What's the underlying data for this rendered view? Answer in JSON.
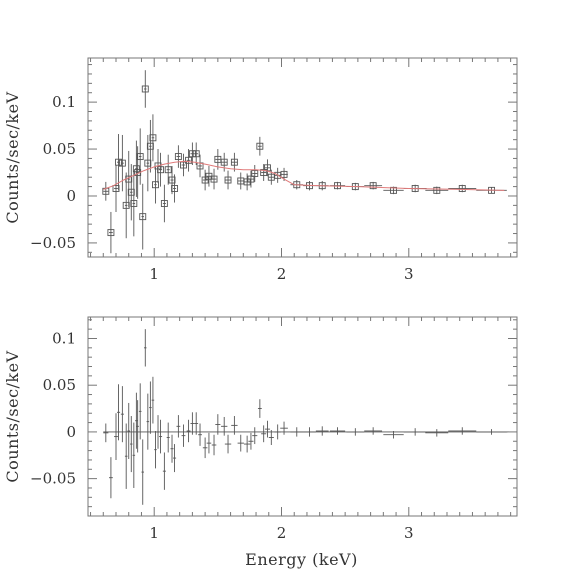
{
  "chart_data": [
    {
      "type": "scatter",
      "ylabel": "Counts/sec/keV",
      "xlabel": "",
      "xlim": [
        0.48,
        3.85
      ],
      "ylim": [
        -0.065,
        0.147
      ],
      "xticks": [
        {
          "v": 1,
          "label": "1"
        },
        {
          "v": 2,
          "label": "2"
        },
        {
          "v": 3,
          "label": "3"
        }
      ],
      "yticks": [
        {
          "v": -0.05,
          "label": "−0.05"
        },
        {
          "v": 0,
          "label": "0"
        },
        {
          "v": 0.05,
          "label": "0.05"
        },
        {
          "v": 0.1,
          "label": "0.1"
        }
      ],
      "grid": false,
      "colors": {
        "data": "#555555",
        "model": "#e07a7a"
      },
      "series": [
        {
          "kind": "data",
          "points": [
            {
              "x": 0.62,
              "y": 0.005,
              "xerr": 0.02,
              "yerr": 0.01
            },
            {
              "x": 0.66,
              "y": -0.039,
              "xerr": 0.015,
              "yerr": 0.022
            },
            {
              "x": 0.7,
              "y": 0.008,
              "xerr": 0.015,
              "yerr": 0.025
            },
            {
              "x": 0.72,
              "y": 0.036,
              "xerr": 0.012,
              "yerr": 0.03
            },
            {
              "x": 0.75,
              "y": 0.035,
              "xerr": 0.012,
              "yerr": 0.03
            },
            {
              "x": 0.78,
              "y": -0.01,
              "xerr": 0.01,
              "yerr": 0.035
            },
            {
              "x": 0.8,
              "y": 0.018,
              "xerr": 0.01,
              "yerr": 0.03
            },
            {
              "x": 0.82,
              "y": 0.004,
              "xerr": 0.01,
              "yerr": 0.03
            },
            {
              "x": 0.84,
              "y": -0.008,
              "xerr": 0.01,
              "yerr": 0.035
            },
            {
              "x": 0.86,
              "y": 0.029,
              "xerr": 0.01,
              "yerr": 0.03
            },
            {
              "x": 0.87,
              "y": 0.025,
              "xerr": 0.01,
              "yerr": 0.028
            },
            {
              "x": 0.89,
              "y": 0.042,
              "xerr": 0.01,
              "yerr": 0.03
            },
            {
              "x": 0.91,
              "y": -0.022,
              "xerr": 0.01,
              "yerr": 0.035
            },
            {
              "x": 0.93,
              "y": 0.114,
              "xerr": 0.01,
              "yerr": 0.02
            },
            {
              "x": 0.95,
              "y": 0.035,
              "xerr": 0.01,
              "yerr": 0.03
            },
            {
              "x": 0.97,
              "y": 0.053,
              "xerr": 0.01,
              "yerr": 0.028
            },
            {
              "x": 0.99,
              "y": 0.062,
              "xerr": 0.01,
              "yerr": 0.025
            },
            {
              "x": 1.01,
              "y": 0.012,
              "xerr": 0.01,
              "yerr": 0.02
            },
            {
              "x": 1.03,
              "y": 0.032,
              "xerr": 0.012,
              "yerr": 0.018
            },
            {
              "x": 1.05,
              "y": 0.028,
              "xerr": 0.012,
              "yerr": 0.018
            },
            {
              "x": 1.08,
              "y": -0.008,
              "xerr": 0.012,
              "yerr": 0.02
            },
            {
              "x": 1.11,
              "y": 0.028,
              "xerr": 0.012,
              "yerr": 0.016
            },
            {
              "x": 1.14,
              "y": 0.017,
              "xerr": 0.012,
              "yerr": 0.015
            },
            {
              "x": 1.16,
              "y": 0.008,
              "xerr": 0.012,
              "yerr": 0.015
            },
            {
              "x": 1.19,
              "y": 0.042,
              "xerr": 0.015,
              "yerr": 0.012
            },
            {
              "x": 1.23,
              "y": 0.033,
              "xerr": 0.015,
              "yerr": 0.012
            },
            {
              "x": 1.27,
              "y": 0.038,
              "xerr": 0.015,
              "yerr": 0.012
            },
            {
              "x": 1.3,
              "y": 0.045,
              "xerr": 0.015,
              "yerr": 0.012
            },
            {
              "x": 1.33,
              "y": 0.045,
              "xerr": 0.015,
              "yerr": 0.012
            },
            {
              "x": 1.36,
              "y": 0.032,
              "xerr": 0.015,
              "yerr": 0.012
            },
            {
              "x": 1.4,
              "y": 0.017,
              "xerr": 0.018,
              "yerr": 0.011
            },
            {
              "x": 1.43,
              "y": 0.021,
              "xerr": 0.018,
              "yerr": 0.011
            },
            {
              "x": 1.47,
              "y": 0.018,
              "xerr": 0.018,
              "yerr": 0.011
            },
            {
              "x": 1.5,
              "y": 0.039,
              "xerr": 0.02,
              "yerr": 0.011
            },
            {
              "x": 1.55,
              "y": 0.036,
              "xerr": 0.025,
              "yerr": 0.01
            },
            {
              "x": 1.58,
              "y": 0.017,
              "xerr": 0.025,
              "yerr": 0.01
            },
            {
              "x": 1.63,
              "y": 0.036,
              "xerr": 0.025,
              "yerr": 0.01
            },
            {
              "x": 1.68,
              "y": 0.016,
              "xerr": 0.025,
              "yerr": 0.009
            },
            {
              "x": 1.73,
              "y": 0.015,
              "xerr": 0.025,
              "yerr": 0.009
            },
            {
              "x": 1.76,
              "y": 0.018,
              "xerr": 0.02,
              "yerr": 0.009
            },
            {
              "x": 1.79,
              "y": 0.024,
              "xerr": 0.02,
              "yerr": 0.009
            },
            {
              "x": 1.83,
              "y": 0.053,
              "xerr": 0.015,
              "yerr": 0.01
            },
            {
              "x": 1.86,
              "y": 0.025,
              "xerr": 0.02,
              "yerr": 0.009
            },
            {
              "x": 1.89,
              "y": 0.03,
              "xerr": 0.02,
              "yerr": 0.009
            },
            {
              "x": 1.92,
              "y": 0.02,
              "xerr": 0.02,
              "yerr": 0.008
            },
            {
              "x": 1.97,
              "y": 0.022,
              "xerr": 0.025,
              "yerr": 0.008
            },
            {
              "x": 2.02,
              "y": 0.023,
              "xerr": 0.03,
              "yerr": 0.007
            },
            {
              "x": 2.12,
              "y": 0.012,
              "xerr": 0.05,
              "yerr": 0.005
            },
            {
              "x": 2.22,
              "y": 0.011,
              "xerr": 0.05,
              "yerr": 0.005
            },
            {
              "x": 2.32,
              "y": 0.011,
              "xerr": 0.05,
              "yerr": 0.005
            },
            {
              "x": 2.44,
              "y": 0.011,
              "xerr": 0.06,
              "yerr": 0.004
            },
            {
              "x": 2.58,
              "y": 0.01,
              "xerr": 0.07,
              "yerr": 0.004
            },
            {
              "x": 2.72,
              "y": 0.011,
              "xerr": 0.07,
              "yerr": 0.004
            },
            {
              "x": 2.88,
              "y": 0.006,
              "xerr": 0.08,
              "yerr": 0.004
            },
            {
              "x": 3.05,
              "y": 0.008,
              "xerr": 0.09,
              "yerr": 0.004
            },
            {
              "x": 3.22,
              "y": 0.006,
              "xerr": 0.09,
              "yerr": 0.004
            },
            {
              "x": 3.42,
              "y": 0.008,
              "xerr": 0.11,
              "yerr": 0.004
            },
            {
              "x": 3.65,
              "y": 0.006,
              "xerr": 0.12,
              "yerr": 0.003
            }
          ]
        },
        {
          "kind": "model",
          "points": [
            {
              "x": 0.6,
              "y": 0.007
            },
            {
              "x": 0.68,
              "y": 0.011
            },
            {
              "x": 0.76,
              "y": 0.017
            },
            {
              "x": 0.84,
              "y": 0.022
            },
            {
              "x": 0.92,
              "y": 0.027
            },
            {
              "x": 1.0,
              "y": 0.031
            },
            {
              "x": 1.08,
              "y": 0.034
            },
            {
              "x": 1.16,
              "y": 0.036
            },
            {
              "x": 1.24,
              "y": 0.037
            },
            {
              "x": 1.32,
              "y": 0.036
            },
            {
              "x": 1.4,
              "y": 0.034
            },
            {
              "x": 1.5,
              "y": 0.031
            },
            {
              "x": 1.6,
              "y": 0.029
            },
            {
              "x": 1.7,
              "y": 0.028
            },
            {
              "x": 1.8,
              "y": 0.028
            },
            {
              "x": 1.88,
              "y": 0.027
            },
            {
              "x": 1.95,
              "y": 0.024
            },
            {
              "x": 2.02,
              "y": 0.018
            },
            {
              "x": 2.1,
              "y": 0.012
            },
            {
              "x": 2.3,
              "y": 0.011
            },
            {
              "x": 2.6,
              "y": 0.01
            },
            {
              "x": 3.0,
              "y": 0.008
            },
            {
              "x": 3.4,
              "y": 0.007
            },
            {
              "x": 3.75,
              "y": 0.006
            }
          ]
        }
      ]
    },
    {
      "type": "scatter",
      "ylabel": "Counts/sec/keV",
      "xlabel": "Energy (keV)",
      "xlim": [
        0.48,
        3.85
      ],
      "ylim": [
        -0.09,
        0.123
      ],
      "xticks": [
        {
          "v": 1,
          "label": "1"
        },
        {
          "v": 2,
          "label": "2"
        },
        {
          "v": 3,
          "label": "3"
        }
      ],
      "yticks": [
        {
          "v": -0.05,
          "label": "−0.05"
        },
        {
          "v": 0,
          "label": "0"
        },
        {
          "v": 0.05,
          "label": "0.05"
        },
        {
          "v": 0.1,
          "label": "0.1"
        }
      ],
      "grid": false,
      "colors": {
        "data": "#555555"
      },
      "zero_line": 0,
      "series": [
        {
          "kind": "residual",
          "points": [
            {
              "x": 0.62,
              "y": -0.001,
              "xerr": 0.02,
              "yerr": 0.01
            },
            {
              "x": 0.66,
              "y": -0.049,
              "xerr": 0.015,
              "yerr": 0.022
            },
            {
              "x": 0.7,
              "y": -0.005,
              "xerr": 0.015,
              "yerr": 0.025
            },
            {
              "x": 0.72,
              "y": 0.021,
              "xerr": 0.012,
              "yerr": 0.03
            },
            {
              "x": 0.75,
              "y": 0.019,
              "xerr": 0.012,
              "yerr": 0.03
            },
            {
              "x": 0.78,
              "y": -0.026,
              "xerr": 0.01,
              "yerr": 0.035
            },
            {
              "x": 0.8,
              "y": 0.001,
              "xerr": 0.01,
              "yerr": 0.03
            },
            {
              "x": 0.82,
              "y": -0.013,
              "xerr": 0.01,
              "yerr": 0.03
            },
            {
              "x": 0.84,
              "y": -0.025,
              "xerr": 0.01,
              "yerr": 0.035
            },
            {
              "x": 0.86,
              "y": 0.012,
              "xerr": 0.01,
              "yerr": 0.03
            },
            {
              "x": 0.87,
              "y": 0.006,
              "xerr": 0.01,
              "yerr": 0.028
            },
            {
              "x": 0.89,
              "y": 0.022,
              "xerr": 0.01,
              "yerr": 0.03
            },
            {
              "x": 0.91,
              "y": -0.043,
              "xerr": 0.01,
              "yerr": 0.035
            },
            {
              "x": 0.93,
              "y": 0.09,
              "xerr": 0.01,
              "yerr": 0.02
            },
            {
              "x": 0.95,
              "y": 0.011,
              "xerr": 0.01,
              "yerr": 0.03
            },
            {
              "x": 0.97,
              "y": 0.026,
              "xerr": 0.01,
              "yerr": 0.028
            },
            {
              "x": 0.99,
              "y": 0.034,
              "xerr": 0.01,
              "yerr": 0.025
            },
            {
              "x": 1.01,
              "y": -0.019,
              "xerr": 0.01,
              "yerr": 0.02
            },
            {
              "x": 1.03,
              "y": 0.0,
              "xerr": 0.012,
              "yerr": 0.018
            },
            {
              "x": 1.05,
              "y": -0.005,
              "xerr": 0.012,
              "yerr": 0.018
            },
            {
              "x": 1.08,
              "y": -0.042,
              "xerr": 0.012,
              "yerr": 0.02
            },
            {
              "x": 1.11,
              "y": -0.006,
              "xerr": 0.012,
              "yerr": 0.016
            },
            {
              "x": 1.14,
              "y": -0.018,
              "xerr": 0.012,
              "yerr": 0.015
            },
            {
              "x": 1.16,
              "y": -0.028,
              "xerr": 0.012,
              "yerr": 0.015
            },
            {
              "x": 1.19,
              "y": 0.006,
              "xerr": 0.015,
              "yerr": 0.012
            },
            {
              "x": 1.23,
              "y": -0.004,
              "xerr": 0.015,
              "yerr": 0.012
            },
            {
              "x": 1.27,
              "y": 0.001,
              "xerr": 0.015,
              "yerr": 0.012
            },
            {
              "x": 1.3,
              "y": 0.009,
              "xerr": 0.015,
              "yerr": 0.012
            },
            {
              "x": 1.33,
              "y": 0.009,
              "xerr": 0.015,
              "yerr": 0.012
            },
            {
              "x": 1.36,
              "y": -0.003,
              "xerr": 0.015,
              "yerr": 0.012
            },
            {
              "x": 1.4,
              "y": -0.017,
              "xerr": 0.018,
              "yerr": 0.011
            },
            {
              "x": 1.43,
              "y": -0.012,
              "xerr": 0.018,
              "yerr": 0.011
            },
            {
              "x": 1.47,
              "y": -0.014,
              "xerr": 0.018,
              "yerr": 0.011
            },
            {
              "x": 1.5,
              "y": 0.008,
              "xerr": 0.02,
              "yerr": 0.011
            },
            {
              "x": 1.55,
              "y": 0.006,
              "xerr": 0.025,
              "yerr": 0.01
            },
            {
              "x": 1.58,
              "y": -0.013,
              "xerr": 0.025,
              "yerr": 0.01
            },
            {
              "x": 1.63,
              "y": 0.007,
              "xerr": 0.025,
              "yerr": 0.01
            },
            {
              "x": 1.68,
              "y": -0.012,
              "xerr": 0.025,
              "yerr": 0.009
            },
            {
              "x": 1.73,
              "y": -0.013,
              "xerr": 0.025,
              "yerr": 0.009
            },
            {
              "x": 1.76,
              "y": -0.01,
              "xerr": 0.02,
              "yerr": 0.009
            },
            {
              "x": 1.79,
              "y": -0.004,
              "xerr": 0.02,
              "yerr": 0.009
            },
            {
              "x": 1.83,
              "y": 0.025,
              "xerr": 0.015,
              "yerr": 0.01
            },
            {
              "x": 1.86,
              "y": -0.002,
              "xerr": 0.02,
              "yerr": 0.009
            },
            {
              "x": 1.89,
              "y": 0.003,
              "xerr": 0.02,
              "yerr": 0.009
            },
            {
              "x": 1.92,
              "y": -0.006,
              "xerr": 0.02,
              "yerr": 0.008
            },
            {
              "x": 1.97,
              "y": 0.0,
              "xerr": 0.025,
              "yerr": 0.008
            },
            {
              "x": 2.02,
              "y": 0.004,
              "xerr": 0.03,
              "yerr": 0.007
            },
            {
              "x": 2.12,
              "y": 0.0,
              "xerr": 0.05,
              "yerr": 0.005
            },
            {
              "x": 2.22,
              "y": 0.0,
              "xerr": 0.05,
              "yerr": 0.005
            },
            {
              "x": 2.32,
              "y": 0.001,
              "xerr": 0.05,
              "yerr": 0.005
            },
            {
              "x": 2.44,
              "y": 0.001,
              "xerr": 0.06,
              "yerr": 0.004
            },
            {
              "x": 2.58,
              "y": 0.0,
              "xerr": 0.07,
              "yerr": 0.004
            },
            {
              "x": 2.72,
              "y": 0.001,
              "xerr": 0.07,
              "yerr": 0.004
            },
            {
              "x": 2.88,
              "y": -0.003,
              "xerr": 0.08,
              "yerr": 0.004
            },
            {
              "x": 3.05,
              "y": 0.0,
              "xerr": 0.09,
              "yerr": 0.004
            },
            {
              "x": 3.22,
              "y": -0.001,
              "xerr": 0.09,
              "yerr": 0.004
            },
            {
              "x": 3.42,
              "y": 0.001,
              "xerr": 0.11,
              "yerr": 0.004
            },
            {
              "x": 3.65,
              "y": 0.0,
              "xerr": 0.12,
              "yerr": 0.003
            }
          ]
        }
      ]
    }
  ]
}
